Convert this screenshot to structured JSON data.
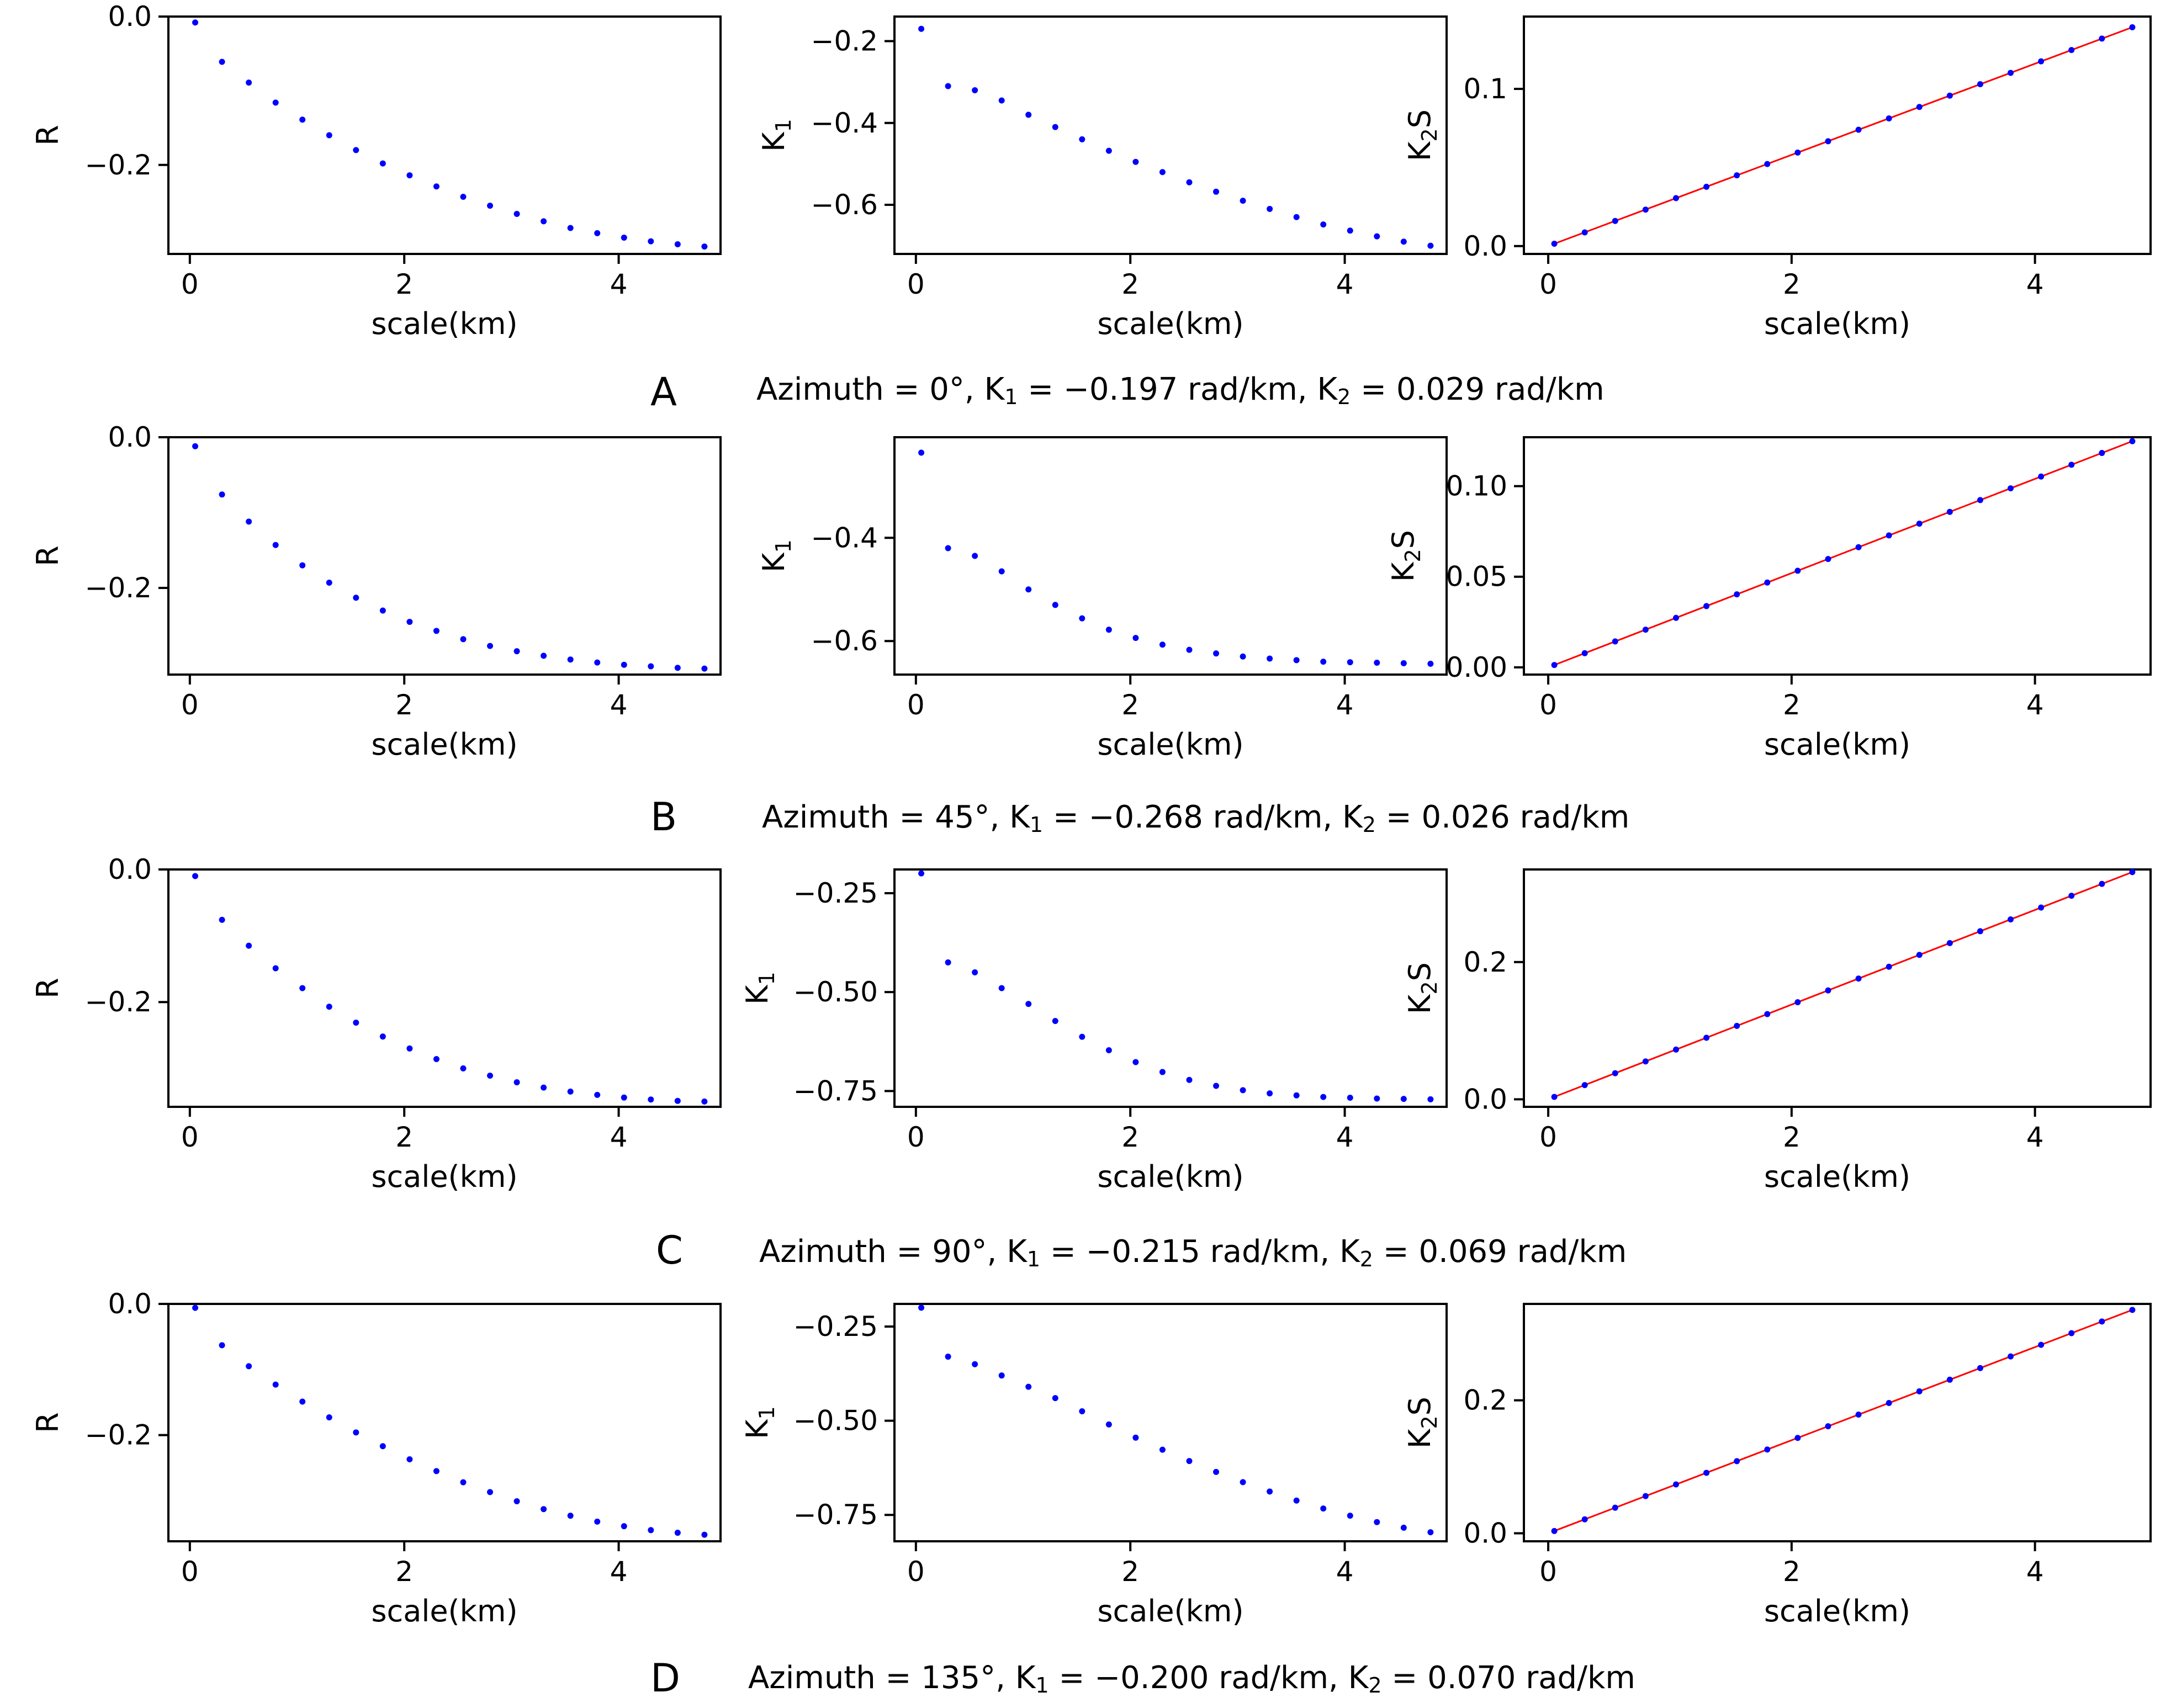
{
  "chart_data": [
    {
      "type": "scatter",
      "panel": "A",
      "caption": {
        "azimuth": "0°",
        "k1": "−0.197",
        "k2": "0.029",
        "unit": "rad/km"
      },
      "plots": [
        {
          "name": "R",
          "ylabel": "R",
          "ylabel_sub": "",
          "ylabel_suffix": "",
          "xlabel": "scale(km)",
          "xlim": [
            -0.2,
            4.95
          ],
          "ylim": [
            -0.32,
            0.0
          ],
          "xticks": [
            0,
            2,
            4
          ],
          "xtick_labels": [
            "0",
            "2",
            "4"
          ],
          "yticks": [
            0.0,
            -0.2
          ],
          "ytick_labels": [
            "0.0",
            "−0.2"
          ],
          "x": [
            0.05,
            0.3,
            0.55,
            0.8,
            1.05,
            1.3,
            1.55,
            1.8,
            2.05,
            2.3,
            2.55,
            2.8,
            3.05,
            3.3,
            3.55,
            3.8,
            4.05,
            4.3,
            4.55,
            4.8
          ],
          "y": [
            -0.008,
            -0.061,
            -0.089,
            -0.116,
            -0.139,
            -0.16,
            -0.18,
            -0.198,
            -0.214,
            -0.229,
            -0.243,
            -0.255,
            -0.266,
            -0.276,
            -0.285,
            -0.292,
            -0.298,
            -0.303,
            -0.307,
            -0.31
          ],
          "fit": null
        },
        {
          "name": "K1",
          "ylabel": "K",
          "ylabel_sub": "1",
          "ylabel_suffix": "",
          "xlabel": "scale(km)",
          "xlim": [
            -0.2,
            4.95
          ],
          "ylim": [
            -0.72,
            -0.14
          ],
          "xticks": [
            0,
            2,
            4
          ],
          "xtick_labels": [
            "0",
            "2",
            "4"
          ],
          "yticks": [
            -0.2,
            -0.4,
            -0.6
          ],
          "ytick_labels": [
            "−0.2",
            "−0.4",
            "−0.6"
          ],
          "x": [
            0.05,
            0.3,
            0.55,
            0.8,
            1.05,
            1.3,
            1.55,
            1.8,
            2.05,
            2.3,
            2.55,
            2.8,
            3.05,
            3.3,
            3.55,
            3.8,
            4.05,
            4.3,
            4.55,
            4.8
          ],
          "y": [
            -0.17,
            -0.31,
            -0.32,
            -0.345,
            -0.38,
            -0.41,
            -0.44,
            -0.468,
            -0.495,
            -0.52,
            -0.545,
            -0.568,
            -0.59,
            -0.61,
            -0.63,
            -0.648,
            -0.663,
            -0.677,
            -0.69,
            -0.7
          ],
          "fit": null
        },
        {
          "name": "K2S",
          "ylabel": "K",
          "ylabel_sub": "2",
          "ylabel_suffix": "S",
          "xlabel": "scale(km)",
          "xlim": [
            -0.2,
            4.95
          ],
          "ylim": [
            -0.005,
            0.146
          ],
          "xticks": [
            0,
            2,
            4
          ],
          "xtick_labels": [
            "0",
            "2",
            "4"
          ],
          "yticks": [
            0.0,
            0.1
          ],
          "ytick_labels": [
            "0.0",
            "0.1"
          ],
          "x": [
            0.05,
            0.3,
            0.55,
            0.8,
            1.05,
            1.3,
            1.55,
            1.8,
            2.05,
            2.3,
            2.55,
            2.8,
            3.05,
            3.3,
            3.55,
            3.8,
            4.05,
            4.3,
            4.55,
            4.8
          ],
          "y": [
            0.0015,
            0.0087,
            0.016,
            0.0232,
            0.0305,
            0.0377,
            0.045,
            0.0522,
            0.0595,
            0.0667,
            0.074,
            0.0812,
            0.0885,
            0.0957,
            0.103,
            0.1102,
            0.1175,
            0.1247,
            0.132,
            0.1392
          ],
          "fit": {
            "x": [
              0.05,
              4.8
            ],
            "y": [
              0.0015,
              0.1392
            ]
          }
        }
      ]
    },
    {
      "type": "scatter",
      "panel": "B",
      "caption": {
        "azimuth": "45°",
        "k1": "−0.268",
        "k2": "0.026",
        "unit": "rad/km"
      },
      "plots": [
        {
          "name": "R",
          "ylabel": "R",
          "ylabel_sub": "",
          "ylabel_suffix": "",
          "xlabel": "scale(km)",
          "xlim": [
            -0.2,
            4.95
          ],
          "ylim": [
            -0.315,
            0.0
          ],
          "xticks": [
            0,
            2,
            4
          ],
          "xtick_labels": [
            "0",
            "2",
            "4"
          ],
          "yticks": [
            0.0,
            -0.2
          ],
          "ytick_labels": [
            "0.0",
            "−0.2"
          ],
          "x": [
            0.05,
            0.3,
            0.55,
            0.8,
            1.05,
            1.3,
            1.55,
            1.8,
            2.05,
            2.3,
            2.55,
            2.8,
            3.05,
            3.3,
            3.55,
            3.8,
            4.05,
            4.3,
            4.55,
            4.8
          ],
          "y": [
            -0.012,
            -0.076,
            -0.112,
            -0.143,
            -0.17,
            -0.193,
            -0.213,
            -0.23,
            -0.245,
            -0.257,
            -0.268,
            -0.277,
            -0.284,
            -0.29,
            -0.295,
            -0.299,
            -0.302,
            -0.304,
            -0.306,
            -0.307
          ],
          "fit": null
        },
        {
          "name": "K1",
          "ylabel": "K",
          "ylabel_sub": "1",
          "ylabel_suffix": "",
          "xlabel": "scale(km)",
          "xlim": [
            -0.2,
            4.95
          ],
          "ylim": [
            -0.665,
            -0.205
          ],
          "xticks": [
            0,
            2,
            4
          ],
          "xtick_labels": [
            "0",
            "2",
            "4"
          ],
          "yticks": [
            -0.4,
            -0.6
          ],
          "ytick_labels": [
            "−0.4",
            "−0.6"
          ],
          "x": [
            0.05,
            0.3,
            0.55,
            0.8,
            1.05,
            1.3,
            1.55,
            1.8,
            2.05,
            2.3,
            2.55,
            2.8,
            3.05,
            3.3,
            3.55,
            3.8,
            4.05,
            4.3,
            4.55,
            4.8
          ],
          "y": [
            -0.235,
            -0.42,
            -0.435,
            -0.465,
            -0.5,
            -0.53,
            -0.556,
            -0.578,
            -0.594,
            -0.607,
            -0.617,
            -0.624,
            -0.63,
            -0.634,
            -0.637,
            -0.64,
            -0.641,
            -0.642,
            -0.643,
            -0.644
          ],
          "fit": null
        },
        {
          "name": "K2S",
          "ylabel": "K",
          "ylabel_sub": "2",
          "ylabel_suffix": "S",
          "xlabel": "scale(km)",
          "xlim": [
            -0.2,
            4.95
          ],
          "ylim": [
            -0.004,
            0.127
          ],
          "xticks": [
            0,
            2,
            4
          ],
          "xtick_labels": [
            "0",
            "2",
            "4"
          ],
          "yticks": [
            0.0,
            0.05,
            0.1
          ],
          "ytick_labels": [
            "0.00",
            "0.05",
            "0.10"
          ],
          "x": [
            0.05,
            0.3,
            0.55,
            0.8,
            1.05,
            1.3,
            1.55,
            1.8,
            2.05,
            2.3,
            2.55,
            2.8,
            3.05,
            3.3,
            3.55,
            3.8,
            4.05,
            4.3,
            4.55,
            4.8
          ],
          "y": [
            0.0013,
            0.0078,
            0.0143,
            0.0208,
            0.0273,
            0.0338,
            0.0403,
            0.0468,
            0.0533,
            0.0598,
            0.0663,
            0.0728,
            0.0793,
            0.0858,
            0.0923,
            0.0988,
            0.1053,
            0.1118,
            0.1183,
            0.1248
          ],
          "fit": {
            "x": [
              0.05,
              4.8
            ],
            "y": [
              0.0013,
              0.1248
            ]
          }
        }
      ]
    },
    {
      "type": "scatter",
      "panel": "C",
      "caption": {
        "azimuth": "90°",
        "k1": "−0.215",
        "k2": "0.069",
        "unit": "rad/km"
      },
      "plots": [
        {
          "name": "R",
          "ylabel": "R",
          "ylabel_sub": "",
          "ylabel_suffix": "",
          "xlabel": "scale(km)",
          "xlim": [
            -0.2,
            4.95
          ],
          "ylim": [
            -0.358,
            0.0
          ],
          "xticks": [
            0,
            2,
            4
          ],
          "xtick_labels": [
            "0",
            "2",
            "4"
          ],
          "yticks": [
            0.0,
            -0.2
          ],
          "ytick_labels": [
            "0.0",
            "−0.2"
          ],
          "x": [
            0.05,
            0.3,
            0.55,
            0.8,
            1.05,
            1.3,
            1.55,
            1.8,
            2.05,
            2.3,
            2.55,
            2.8,
            3.05,
            3.3,
            3.55,
            3.8,
            4.05,
            4.3,
            4.55,
            4.8
          ],
          "y": [
            -0.01,
            -0.076,
            -0.115,
            -0.149,
            -0.179,
            -0.207,
            -0.231,
            -0.252,
            -0.27,
            -0.286,
            -0.3,
            -0.311,
            -0.321,
            -0.329,
            -0.335,
            -0.34,
            -0.344,
            -0.347,
            -0.349,
            -0.35
          ],
          "fit": null
        },
        {
          "name": "K1",
          "ylabel": "K",
          "ylabel_sub": "1",
          "ylabel_suffix": "",
          "xlabel": "scale(km)",
          "xlim": [
            -0.2,
            4.95
          ],
          "ylim": [
            -0.79,
            -0.19
          ],
          "xticks": [
            0,
            2,
            4
          ],
          "xtick_labels": [
            "0",
            "2",
            "4"
          ],
          "yticks": [
            -0.25,
            -0.5,
            -0.75
          ],
          "ytick_labels": [
            "−0.25",
            "−0.50",
            "−0.75"
          ],
          "x": [
            0.05,
            0.3,
            0.55,
            0.8,
            1.05,
            1.3,
            1.55,
            1.8,
            2.05,
            2.3,
            2.55,
            2.8,
            3.05,
            3.3,
            3.55,
            3.8,
            4.05,
            4.3,
            4.55,
            4.8
          ],
          "y": [
            -0.2,
            -0.425,
            -0.45,
            -0.49,
            -0.53,
            -0.573,
            -0.613,
            -0.647,
            -0.677,
            -0.702,
            -0.722,
            -0.737,
            -0.748,
            -0.756,
            -0.761,
            -0.765,
            -0.767,
            -0.769,
            -0.77,
            -0.771
          ],
          "fit": null
        },
        {
          "name": "K2S",
          "ylabel": "K",
          "ylabel_sub": "2",
          "ylabel_suffix": "S",
          "xlabel": "scale(km)",
          "xlim": [
            -0.2,
            4.95
          ],
          "ylim": [
            -0.011,
            0.335
          ],
          "xticks": [
            0,
            2,
            4
          ],
          "xtick_labels": [
            "0",
            "2",
            "4"
          ],
          "yticks": [
            0.0,
            0.2
          ],
          "ytick_labels": [
            "0.0",
            "0.2"
          ],
          "x": [
            0.05,
            0.3,
            0.55,
            0.8,
            1.05,
            1.3,
            1.55,
            1.8,
            2.05,
            2.3,
            2.55,
            2.8,
            3.05,
            3.3,
            3.55,
            3.8,
            4.05,
            4.3,
            4.55,
            4.8
          ],
          "y": [
            0.0035,
            0.0207,
            0.038,
            0.0552,
            0.0725,
            0.0897,
            0.107,
            0.1242,
            0.1415,
            0.1587,
            0.176,
            0.1932,
            0.2105,
            0.2277,
            0.245,
            0.2622,
            0.2795,
            0.2967,
            0.314,
            0.3312
          ],
          "fit": {
            "x": [
              0.05,
              4.8
            ],
            "y": [
              0.0035,
              0.3312
            ]
          }
        }
      ]
    },
    {
      "type": "scatter",
      "panel": "D",
      "caption": {
        "azimuth": "135°",
        "k1": "−0.200",
        "k2": "0.070",
        "unit": "rad/km"
      },
      "plots": [
        {
          "name": "R",
          "ylabel": "R",
          "ylabel_sub": "",
          "ylabel_suffix": "",
          "xlabel": "scale(km)",
          "xlim": [
            -0.2,
            4.95
          ],
          "ylim": [
            -0.362,
            0.0
          ],
          "xticks": [
            0,
            2,
            4
          ],
          "xtick_labels": [
            "0",
            "2",
            "4"
          ],
          "yticks": [
            0.0,
            -0.2
          ],
          "ytick_labels": [
            "0.0",
            "−0.2"
          ],
          "x": [
            0.05,
            0.3,
            0.55,
            0.8,
            1.05,
            1.3,
            1.55,
            1.8,
            2.05,
            2.3,
            2.55,
            2.8,
            3.05,
            3.3,
            3.55,
            3.8,
            4.05,
            4.3,
            4.55,
            4.8
          ],
          "y": [
            -0.006,
            -0.063,
            -0.095,
            -0.123,
            -0.149,
            -0.173,
            -0.196,
            -0.217,
            -0.237,
            -0.255,
            -0.272,
            -0.287,
            -0.301,
            -0.313,
            -0.323,
            -0.332,
            -0.339,
            -0.345,
            -0.349,
            -0.352
          ],
          "fit": null
        },
        {
          "name": "K1",
          "ylabel": "K",
          "ylabel_sub": "1",
          "ylabel_suffix": "",
          "xlabel": "scale(km)",
          "xlim": [
            -0.2,
            4.95
          ],
          "ylim": [
            -0.82,
            -0.19
          ],
          "xticks": [
            0,
            2,
            4
          ],
          "xtick_labels": [
            "0",
            "2",
            "4"
          ],
          "yticks": [
            -0.25,
            -0.5,
            -0.75
          ],
          "ytick_labels": [
            "−0.25",
            "−0.50",
            "−0.75"
          ],
          "x": [
            0.05,
            0.3,
            0.55,
            0.8,
            1.05,
            1.3,
            1.55,
            1.8,
            2.05,
            2.3,
            2.55,
            2.8,
            3.05,
            3.3,
            3.55,
            3.8,
            4.05,
            4.3,
            4.55,
            4.8
          ],
          "y": [
            -0.2,
            -0.33,
            -0.35,
            -0.38,
            -0.41,
            -0.44,
            -0.475,
            -0.51,
            -0.545,
            -0.577,
            -0.607,
            -0.636,
            -0.663,
            -0.688,
            -0.712,
            -0.733,
            -0.752,
            -0.769,
            -0.784,
            -0.796
          ],
          "fit": null
        },
        {
          "name": "K2S",
          "ylabel": "K",
          "ylabel_sub": "2",
          "ylabel_suffix": "S",
          "xlabel": "scale(km)",
          "xlim": [
            -0.2,
            4.95
          ],
          "ylim": [
            -0.012,
            0.345
          ],
          "xticks": [
            0,
            2,
            4
          ],
          "xtick_labels": [
            "0",
            "2",
            "4"
          ],
          "yticks": [
            0.0,
            0.2
          ],
          "ytick_labels": [
            "0.0",
            "0.2"
          ],
          "x": [
            0.05,
            0.3,
            0.55,
            0.8,
            1.05,
            1.3,
            1.55,
            1.8,
            2.05,
            2.3,
            2.55,
            2.8,
            3.05,
            3.3,
            3.55,
            3.8,
            4.05,
            4.3,
            4.55,
            4.8
          ],
          "y": [
            0.0035,
            0.021,
            0.0385,
            0.056,
            0.0735,
            0.091,
            0.1085,
            0.126,
            0.1435,
            0.161,
            0.1785,
            0.196,
            0.2135,
            0.231,
            0.2485,
            0.266,
            0.2835,
            0.301,
            0.3185,
            0.336
          ],
          "fit": {
            "x": [
              0.05,
              4.8
            ],
            "y": [
              0.0035,
              0.336
            ]
          }
        }
      ]
    }
  ],
  "colors": {
    "points": "#0000ff",
    "fit": "#ff0000",
    "axes": "#000000"
  }
}
